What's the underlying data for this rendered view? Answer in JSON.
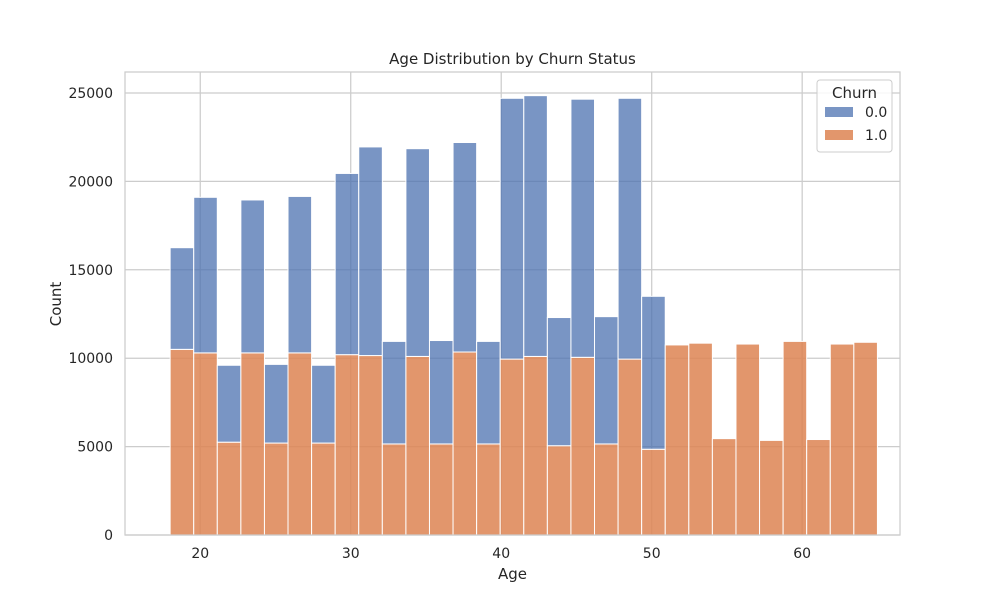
{
  "chart_data": {
    "type": "bar",
    "subtype": "stacked-histogram",
    "title": "Age Distribution by Churn Status",
    "xlabel": "Age",
    "ylabel": "Count",
    "xlim": [
      15,
      66.5
    ],
    "ylim": [
      0,
      25000
    ],
    "xticks": [
      20,
      30,
      40,
      50,
      60
    ],
    "yticks": [
      0,
      5000,
      10000,
      15000,
      20000,
      25000
    ],
    "grid": true,
    "legend": {
      "title": "Churn",
      "position": "top-right"
    },
    "bin_edges": [
      18,
      19.567,
      21.133,
      22.7,
      24.267,
      25.833,
      27.4,
      28.967,
      30.533,
      32.1,
      33.667,
      35.233,
      36.8,
      38.367,
      39.933,
      41.5,
      43.067,
      44.633,
      46.2,
      47.767,
      49.333,
      50.9,
      52.467,
      54.033,
      55.6,
      57.167,
      58.733,
      60.3,
      61.867,
      63.433,
      65
    ],
    "series": [
      {
        "name": "1.0",
        "color": "#dd8452",
        "values": [
          10500,
          10300,
          5250,
          10300,
          5200,
          10300,
          5200,
          10200,
          10150,
          5150,
          10100,
          5150,
          10350,
          5150,
          9950,
          10100,
          5050,
          10050,
          5150,
          9950,
          4850,
          10750,
          10850,
          5450,
          10800,
          5350,
          10950,
          5400,
          10800,
          10900
        ]
      },
      {
        "name": "0.0",
        "color": "#4c72b0",
        "values": [
          5750,
          8800,
          4350,
          8650,
          4450,
          8850,
          4400,
          10250,
          11800,
          5800,
          11750,
          5850,
          11850,
          5800,
          14750,
          14750,
          7250,
          14600,
          7200,
          14750,
          8650,
          0,
          0,
          0,
          0,
          0,
          0,
          0,
          0,
          0
        ]
      }
    ]
  }
}
